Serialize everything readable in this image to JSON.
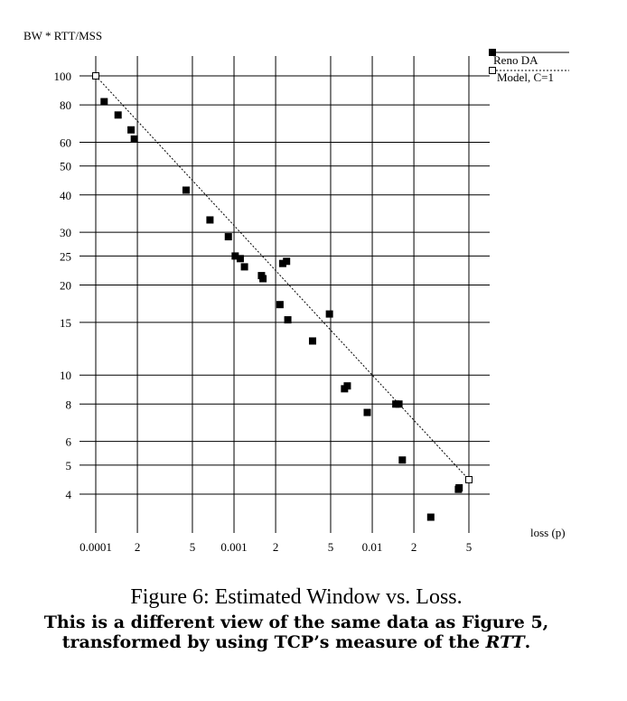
{
  "chart_data": {
    "type": "scatter",
    "ylabel": "BW * RTT/MSS",
    "xlabel": "loss (p)",
    "x_scale": "log",
    "y_scale": "log",
    "xlim": [
      0.0001,
      0.05
    ],
    "ylim": [
      3.2,
      100
    ],
    "x_ticks": [
      {
        "value": 0.0001,
        "label": "0.0001"
      },
      {
        "value": 0.0002,
        "label": "2"
      },
      {
        "value": 0.0005,
        "label": "5"
      },
      {
        "value": 0.001,
        "label": "0.001"
      },
      {
        "value": 0.002,
        "label": "2"
      },
      {
        "value": 0.005,
        "label": "5"
      },
      {
        "value": 0.01,
        "label": "0.01"
      },
      {
        "value": 0.02,
        "label": "2"
      },
      {
        "value": 0.05,
        "label": "5"
      }
    ],
    "y_ticks": [
      {
        "value": 100,
        "label": "100"
      },
      {
        "value": 80,
        "label": "80"
      },
      {
        "value": 60,
        "label": "60"
      },
      {
        "value": 50,
        "label": "50"
      },
      {
        "value": 40,
        "label": "40"
      },
      {
        "value": 30,
        "label": "30"
      },
      {
        "value": 25,
        "label": "25"
      },
      {
        "value": 20,
        "label": "20"
      },
      {
        "value": 15,
        "label": "15"
      },
      {
        "value": 10,
        "label": "10"
      },
      {
        "value": 8,
        "label": "8"
      },
      {
        "value": 6,
        "label": "6"
      },
      {
        "value": 5,
        "label": "5"
      },
      {
        "value": 4,
        "label": "4"
      }
    ],
    "grid": true,
    "legend_position": "top-right",
    "series": [
      {
        "name": "Reno DA",
        "marker": "filled-square",
        "points": [
          [
            0.000115,
            82
          ],
          [
            0.000145,
            74
          ],
          [
            0.00018,
            66
          ],
          [
            0.00019,
            61.5
          ],
          [
            0.00045,
            41.5
          ],
          [
            0.00067,
            33
          ],
          [
            0.00091,
            29
          ],
          [
            0.00102,
            25
          ],
          [
            0.00111,
            24.5
          ],
          [
            0.00119,
            23
          ],
          [
            0.00158,
            21.5
          ],
          [
            0.00162,
            21
          ],
          [
            0.00215,
            17.2
          ],
          [
            0.00225,
            23.6
          ],
          [
            0.0024,
            24
          ],
          [
            0.00245,
            15.3
          ],
          [
            0.0037,
            13
          ],
          [
            0.0049,
            16
          ],
          [
            0.0063,
            9
          ],
          [
            0.0066,
            9.2
          ],
          [
            0.0092,
            7.5
          ],
          [
            0.0148,
            8
          ],
          [
            0.0156,
            8
          ],
          [
            0.0165,
            5.2
          ],
          [
            0.0265,
            3.35
          ],
          [
            0.042,
            4.15
          ],
          [
            0.0425,
            4.2
          ]
        ]
      },
      {
        "name": "Model, C=1",
        "marker": "open-square",
        "line": "dotted",
        "points": [
          [
            0.0001,
            100
          ],
          [
            0.05,
            4.47
          ]
        ]
      }
    ]
  },
  "caption": {
    "title": "Figure 6: Estimated Window vs. Loss.",
    "line1": "This is a different view of the same data as Figure 5,",
    "line2_prefix": "transformed by using TCP’s measure of the ",
    "line2_em": "RTT",
    "line2_suffix": "."
  }
}
